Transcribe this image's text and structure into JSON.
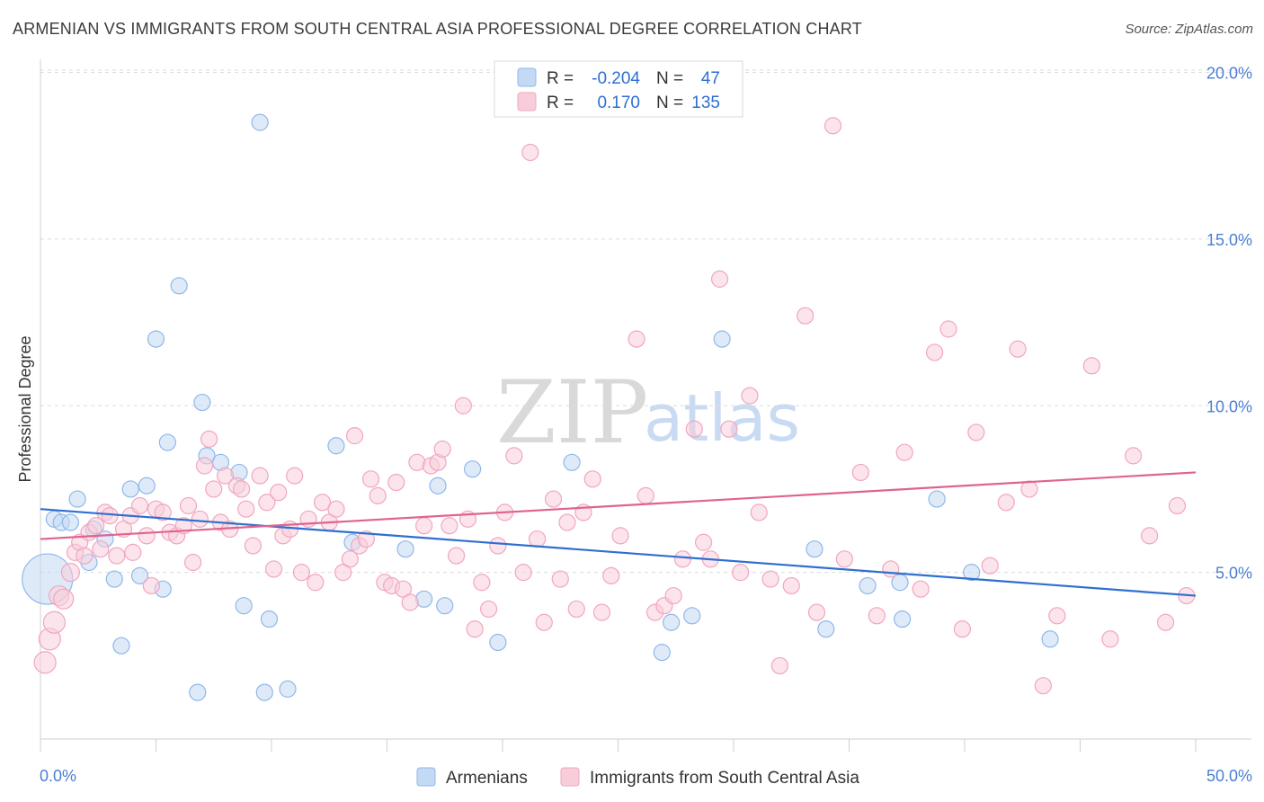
{
  "title": "ARMENIAN VS IMMIGRANTS FROM SOUTH CENTRAL ASIA PROFESSIONAL DEGREE CORRELATION CHART",
  "source": "Source: ZipAtlas.com",
  "watermark": {
    "zip": "ZIP",
    "atlas": "atlas"
  },
  "chart_data": {
    "type": "scatter",
    "ylabel": "Professional Degree",
    "xlabel": "",
    "xlim": [
      0,
      50
    ],
    "ylim": [
      0,
      20.5
    ],
    "x_tick_labels": {
      "left": "0.0%",
      "right": "50.0%"
    },
    "y_ticks": [
      {
        "value": 5,
        "label": "5.0%"
      },
      {
        "value": 10,
        "label": "10.0%"
      },
      {
        "value": 15,
        "label": "15.0%"
      },
      {
        "value": 20,
        "label": "20.0%"
      }
    ],
    "legend": [
      {
        "name": "Armenians",
        "r_label": "R =",
        "r": "-0.204",
        "n_label": "N =",
        "n": "47"
      },
      {
        "name": "Immigrants from South Central Asia",
        "r_label": "R =",
        "r": "0.170",
        "n_label": "N =",
        "n": "135"
      }
    ],
    "series": [
      {
        "name": "Armenians",
        "color": "#8fb8ea",
        "fill": "#c4d9f4",
        "line_color": "#2f6fcf",
        "trend": {
          "x0": 0,
          "y0": 6.9,
          "x1": 50,
          "y1": 4.3
        },
        "points": [
          [
            0.3,
            4.8,
            28
          ],
          [
            0.6,
            6.6,
            9
          ],
          [
            0.9,
            6.5,
            9
          ],
          [
            1.3,
            6.5,
            9
          ],
          [
            1.6,
            7.2,
            9
          ],
          [
            2.1,
            5.3,
            9
          ],
          [
            2.3,
            6.3,
            9
          ],
          [
            2.8,
            6.0,
            9
          ],
          [
            3.2,
            4.8,
            9
          ],
          [
            3.5,
            2.8,
            9
          ],
          [
            3.9,
            7.5,
            9
          ],
          [
            4.3,
            4.9,
            9
          ],
          [
            4.6,
            7.6,
            9
          ],
          [
            5.0,
            12.0,
            9
          ],
          [
            5.3,
            4.5,
            9
          ],
          [
            5.5,
            8.9,
            9
          ],
          [
            6.0,
            13.6,
            9
          ],
          [
            6.8,
            1.4,
            9
          ],
          [
            7.0,
            10.1,
            9
          ],
          [
            7.2,
            8.5,
            9
          ],
          [
            7.8,
            8.3,
            9
          ],
          [
            8.6,
            8.0,
            9
          ],
          [
            8.8,
            4.0,
            9
          ],
          [
            9.5,
            18.5,
            9
          ],
          [
            9.7,
            1.4,
            9
          ],
          [
            9.9,
            3.6,
            9
          ],
          [
            10.7,
            1.5,
            9
          ],
          [
            12.8,
            8.8,
            9
          ],
          [
            13.5,
            5.9,
            9
          ],
          [
            15.8,
            5.7,
            9
          ],
          [
            16.6,
            4.2,
            9
          ],
          [
            17.2,
            7.6,
            9
          ],
          [
            17.5,
            4.0,
            9
          ],
          [
            18.7,
            8.1,
            9
          ],
          [
            19.8,
            2.9,
            9
          ],
          [
            23.0,
            8.3,
            9
          ],
          [
            26.9,
            2.6,
            9
          ],
          [
            27.3,
            3.5,
            9
          ],
          [
            28.2,
            3.7,
            9
          ],
          [
            29.5,
            12.0,
            9
          ],
          [
            33.5,
            5.7,
            9
          ],
          [
            34.0,
            3.3,
            9
          ],
          [
            35.8,
            4.6,
            9
          ],
          [
            37.2,
            4.7,
            9
          ],
          [
            37.3,
            3.6,
            9
          ],
          [
            38.8,
            7.2,
            9
          ],
          [
            40.3,
            5.0,
            9
          ],
          [
            43.7,
            3.0,
            9
          ]
        ]
      },
      {
        "name": "Immigrants from South Central Asia",
        "color": "#f2a6bf",
        "fill": "#f8cdda",
        "line_color": "#e0638e",
        "trend": {
          "x0": 0,
          "y0": 6.0,
          "x1": 50,
          "y1": 8.0
        },
        "points": [
          [
            0.2,
            2.3,
            12
          ],
          [
            0.4,
            3.0,
            12
          ],
          [
            0.6,
            3.5,
            12
          ],
          [
            0.8,
            4.3,
            11
          ],
          [
            1.0,
            4.2,
            11
          ],
          [
            1.3,
            5.0,
            10
          ],
          [
            1.5,
            5.6,
            9
          ],
          [
            1.7,
            5.9,
            9
          ],
          [
            1.9,
            5.5,
            9
          ],
          [
            2.1,
            6.2,
            9
          ],
          [
            2.4,
            6.4,
            9
          ],
          [
            2.6,
            5.7,
            9
          ],
          [
            2.8,
            6.8,
            9
          ],
          [
            3.0,
            6.7,
            9
          ],
          [
            3.3,
            5.5,
            9
          ],
          [
            3.6,
            6.3,
            9
          ],
          [
            3.9,
            6.7,
            9
          ],
          [
            4.0,
            5.6,
            9
          ],
          [
            4.3,
            7.0,
            9
          ],
          [
            4.6,
            6.1,
            9
          ],
          [
            4.8,
            4.6,
            9
          ],
          [
            5.0,
            6.9,
            9
          ],
          [
            5.3,
            6.8,
            9
          ],
          [
            5.6,
            6.2,
            9
          ],
          [
            5.9,
            6.1,
            9
          ],
          [
            6.2,
            6.4,
            9
          ],
          [
            6.4,
            7.0,
            9
          ],
          [
            6.6,
            5.3,
            9
          ],
          [
            6.9,
            6.6,
            9
          ],
          [
            7.1,
            8.2,
            9
          ],
          [
            7.3,
            9.0,
            9
          ],
          [
            7.5,
            7.5,
            9
          ],
          [
            7.8,
            6.5,
            9
          ],
          [
            8.0,
            7.9,
            9
          ],
          [
            8.2,
            6.3,
            9
          ],
          [
            8.5,
            7.6,
            9
          ],
          [
            8.7,
            7.5,
            9
          ],
          [
            8.9,
            6.9,
            9
          ],
          [
            9.2,
            5.8,
            9
          ],
          [
            9.5,
            7.9,
            9
          ],
          [
            9.8,
            7.1,
            9
          ],
          [
            10.1,
            5.1,
            9
          ],
          [
            10.3,
            7.4,
            9
          ],
          [
            10.5,
            6.1,
            9
          ],
          [
            10.8,
            6.3,
            9
          ],
          [
            11.0,
            7.9,
            9
          ],
          [
            11.3,
            5.0,
            9
          ],
          [
            11.6,
            6.6,
            9
          ],
          [
            11.9,
            4.7,
            9
          ],
          [
            12.2,
            7.1,
            9
          ],
          [
            12.5,
            6.5,
            9
          ],
          [
            12.8,
            6.9,
            9
          ],
          [
            13.1,
            5.0,
            9
          ],
          [
            13.4,
            5.4,
            9
          ],
          [
            13.6,
            9.1,
            9
          ],
          [
            13.8,
            5.8,
            9
          ],
          [
            14.1,
            6.0,
            9
          ],
          [
            14.3,
            7.8,
            9
          ],
          [
            14.6,
            7.3,
            9
          ],
          [
            14.9,
            4.7,
            9
          ],
          [
            15.2,
            4.6,
            9
          ],
          [
            15.4,
            7.7,
            9
          ],
          [
            15.7,
            4.5,
            9
          ],
          [
            16.0,
            4.1,
            9
          ],
          [
            16.3,
            8.3,
            9
          ],
          [
            16.6,
            6.4,
            9
          ],
          [
            16.9,
            8.2,
            9
          ],
          [
            17.2,
            8.3,
            9
          ],
          [
            17.4,
            8.7,
            9
          ],
          [
            17.7,
            6.4,
            9
          ],
          [
            18.0,
            5.5,
            9
          ],
          [
            18.3,
            10.0,
            9
          ],
          [
            18.5,
            6.6,
            9
          ],
          [
            18.8,
            3.3,
            9
          ],
          [
            19.1,
            4.7,
            9
          ],
          [
            19.4,
            3.9,
            9
          ],
          [
            19.8,
            5.8,
            9
          ],
          [
            20.1,
            6.8,
            9
          ],
          [
            20.5,
            8.5,
            9
          ],
          [
            20.9,
            5.0,
            9
          ],
          [
            21.2,
            17.6,
            9
          ],
          [
            21.5,
            6.0,
            9
          ],
          [
            21.8,
            3.5,
            9
          ],
          [
            22.2,
            7.2,
            9
          ],
          [
            22.5,
            4.8,
            9
          ],
          [
            22.8,
            6.5,
            9
          ],
          [
            23.2,
            3.9,
            9
          ],
          [
            23.5,
            6.8,
            9
          ],
          [
            23.9,
            7.8,
            9
          ],
          [
            24.3,
            3.8,
            9
          ],
          [
            24.7,
            4.9,
            9
          ],
          [
            25.1,
            6.1,
            9
          ],
          [
            25.8,
            12.0,
            9
          ],
          [
            26.2,
            7.3,
            9
          ],
          [
            26.6,
            3.8,
            9
          ],
          [
            27.0,
            4.0,
            9
          ],
          [
            27.4,
            4.3,
            9
          ],
          [
            27.8,
            5.4,
            9
          ],
          [
            28.3,
            9.3,
            9
          ],
          [
            28.7,
            5.9,
            9
          ],
          [
            29.0,
            5.4,
            9
          ],
          [
            29.4,
            13.8,
            9
          ],
          [
            29.8,
            9.3,
            9
          ],
          [
            30.3,
            5.0,
            9
          ],
          [
            30.7,
            10.3,
            9
          ],
          [
            31.1,
            6.8,
            9
          ],
          [
            31.6,
            4.8,
            9
          ],
          [
            32.0,
            2.2,
            9
          ],
          [
            32.5,
            4.6,
            9
          ],
          [
            33.1,
            12.7,
            9
          ],
          [
            33.6,
            3.8,
            9
          ],
          [
            34.3,
            18.4,
            9
          ],
          [
            34.8,
            5.4,
            9
          ],
          [
            35.5,
            8.0,
            9
          ],
          [
            36.2,
            3.7,
            9
          ],
          [
            36.8,
            5.1,
            9
          ],
          [
            37.4,
            8.6,
            9
          ],
          [
            38.1,
            4.5,
            9
          ],
          [
            38.7,
            11.6,
            9
          ],
          [
            39.3,
            12.3,
            9
          ],
          [
            39.9,
            3.3,
            9
          ],
          [
            40.5,
            9.2,
            9
          ],
          [
            41.1,
            5.2,
            9
          ],
          [
            41.8,
            7.1,
            9
          ],
          [
            42.3,
            11.7,
            9
          ],
          [
            42.8,
            7.5,
            9
          ],
          [
            43.4,
            1.6,
            9
          ],
          [
            44.0,
            3.7,
            9
          ],
          [
            45.5,
            11.2,
            9
          ],
          [
            46.3,
            3.0,
            9
          ],
          [
            47.3,
            8.5,
            9
          ],
          [
            48.0,
            6.1,
            9
          ],
          [
            48.7,
            3.5,
            9
          ],
          [
            49.2,
            7.0,
            9
          ],
          [
            49.6,
            4.3,
            9
          ]
        ]
      }
    ]
  }
}
